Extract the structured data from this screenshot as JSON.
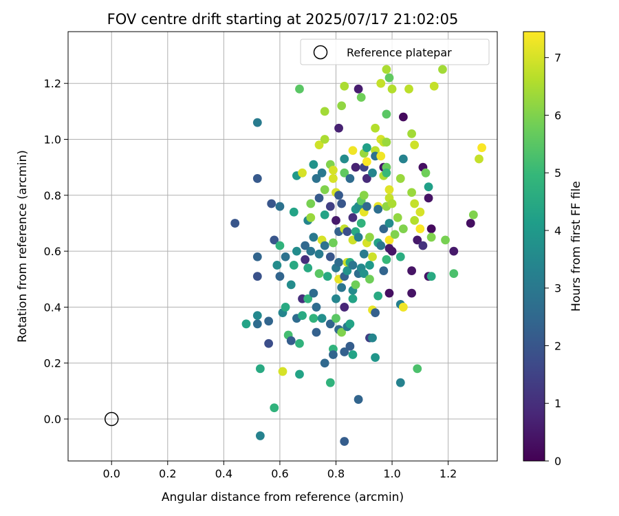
{
  "chart_data": {
    "type": "scatter",
    "title": "FOV centre drift starting at 2025/07/17 21:02:05",
    "xlabel": "Angular distance from reference (arcmin)",
    "ylabel": "Rotation from reference (arcmin)",
    "xlim": [
      -0.155,
      1.375
    ],
    "ylim": [
      -0.15,
      1.385
    ],
    "xticks": [
      "0.0",
      "0.2",
      "0.4",
      "0.6",
      "0.8",
      "1.0",
      "1.2"
    ],
    "yticks": [
      "0.0",
      "0.2",
      "0.4",
      "0.6",
      "0.8",
      "1.0",
      "1.2"
    ],
    "grid": true,
    "legend": {
      "placement": "top-right",
      "label": "Reference platepar",
      "marker": "open-circle"
    },
    "reference_point": {
      "x": 0.0,
      "y": 0.0
    },
    "colorbar": {
      "label": "Hours from first FF file",
      "colormap": "viridis",
      "range": [
        0,
        7.45
      ],
      "ticks": [
        "0",
        "1",
        "2",
        "3",
        "4",
        "5",
        "6",
        "7"
      ]
    },
    "points": [
      {
        "x": 0.44,
        "y": 0.7,
        "h": 2.0
      },
      {
        "x": 0.52,
        "y": 1.06,
        "h": 3.1
      },
      {
        "x": 0.52,
        "y": 0.86,
        "h": 2.1
      },
      {
        "x": 0.52,
        "y": 0.58,
        "h": 2.4
      },
      {
        "x": 0.52,
        "y": 0.51,
        "h": 1.9
      },
      {
        "x": 0.52,
        "y": 0.34,
        "h": 2.6
      },
      {
        "x": 0.52,
        "y": 0.37,
        "h": 3.5
      },
      {
        "x": 0.48,
        "y": 0.34,
        "h": 4.3
      },
      {
        "x": 0.53,
        "y": 0.18,
        "h": 4.5
      },
      {
        "x": 0.53,
        "y": -0.06,
        "h": 3.3
      },
      {
        "x": 0.56,
        "y": 0.35,
        "h": 2.4
      },
      {
        "x": 0.56,
        "y": 0.27,
        "h": 1.8
      },
      {
        "x": 0.57,
        "y": 0.77,
        "h": 2.0
      },
      {
        "x": 0.58,
        "y": 0.64,
        "h": 2.0
      },
      {
        "x": 0.58,
        "y": 0.04,
        "h": 4.8
      },
      {
        "x": 0.59,
        "y": 0.55,
        "h": 3.6
      },
      {
        "x": 0.6,
        "y": 0.76,
        "h": 2.8
      },
      {
        "x": 0.6,
        "y": 0.51,
        "h": 2.4
      },
      {
        "x": 0.6,
        "y": 0.62,
        "h": 4.8
      },
      {
        "x": 0.61,
        "y": 0.38,
        "h": 3.4
      },
      {
        "x": 0.61,
        "y": 0.17,
        "h": 7.0
      },
      {
        "x": 0.62,
        "y": 0.58,
        "h": 2.8
      },
      {
        "x": 0.62,
        "y": 0.4,
        "h": 4.5
      },
      {
        "x": 0.63,
        "y": 0.3,
        "h": 5.2
      },
      {
        "x": 0.64,
        "y": 0.28,
        "h": 2.2
      },
      {
        "x": 0.64,
        "y": 0.48,
        "h": 3.6
      },
      {
        "x": 0.65,
        "y": 0.74,
        "h": 4.3
      },
      {
        "x": 0.65,
        "y": 0.55,
        "h": 4.5
      },
      {
        "x": 0.66,
        "y": 0.87,
        "h": 4.0
      },
      {
        "x": 0.66,
        "y": 0.6,
        "h": 3.6
      },
      {
        "x": 0.66,
        "y": 0.36,
        "h": 2.6
      },
      {
        "x": 0.67,
        "y": 1.18,
        "h": 5.5
      },
      {
        "x": 0.67,
        "y": 0.27,
        "h": 4.8
      },
      {
        "x": 0.67,
        "y": 0.16,
        "h": 4.3
      },
      {
        "x": 0.68,
        "y": 0.88,
        "h": 7.0
      },
      {
        "x": 0.68,
        "y": 0.43,
        "h": 1.0
      },
      {
        "x": 0.68,
        "y": 0.37,
        "h": 4.5
      },
      {
        "x": 0.69,
        "y": 0.62,
        "h": 2.5
      },
      {
        "x": 0.69,
        "y": 0.57,
        "h": 1.0
      },
      {
        "x": 0.7,
        "y": 0.71,
        "h": 3.4
      },
      {
        "x": 0.7,
        "y": 0.54,
        "h": 4.5
      },
      {
        "x": 0.7,
        "y": 0.43,
        "h": 4.8
      },
      {
        "x": 0.71,
        "y": 0.77,
        "h": 5.9
      },
      {
        "x": 0.71,
        "y": 0.72,
        "h": 6.3
      },
      {
        "x": 0.71,
        "y": 0.6,
        "h": 2.9
      },
      {
        "x": 0.72,
        "y": 0.91,
        "h": 3.8
      },
      {
        "x": 0.72,
        "y": 0.65,
        "h": 3.0
      },
      {
        "x": 0.72,
        "y": 0.45,
        "h": 2.6
      },
      {
        "x": 0.72,
        "y": 0.36,
        "h": 4.8
      },
      {
        "x": 0.73,
        "y": 0.4,
        "h": 2.6
      },
      {
        "x": 0.73,
        "y": 0.31,
        "h": 2.3
      },
      {
        "x": 0.73,
        "y": 0.86,
        "h": 2.8
      },
      {
        "x": 0.74,
        "y": 0.98,
        "h": 6.9
      },
      {
        "x": 0.74,
        "y": 0.79,
        "h": 2.1
      },
      {
        "x": 0.74,
        "y": 0.59,
        "h": 3.1
      },
      {
        "x": 0.74,
        "y": 0.52,
        "h": 5.5
      },
      {
        "x": 0.75,
        "y": 0.88,
        "h": 3.0
      },
      {
        "x": 0.75,
        "y": 0.64,
        "h": 7.0
      },
      {
        "x": 0.75,
        "y": 0.36,
        "h": 3.7
      },
      {
        "x": 0.76,
        "y": 1.1,
        "h": 6.4
      },
      {
        "x": 0.76,
        "y": 1.0,
        "h": 6.5
      },
      {
        "x": 0.76,
        "y": 0.82,
        "h": 6.0
      },
      {
        "x": 0.76,
        "y": 0.73,
        "h": 4.3
      },
      {
        "x": 0.76,
        "y": 0.62,
        "h": 2.8
      },
      {
        "x": 0.76,
        "y": 0.2,
        "h": 2.5
      },
      {
        "x": 0.77,
        "y": 0.51,
        "h": 4.5
      },
      {
        "x": 0.78,
        "y": 0.91,
        "h": 6.0
      },
      {
        "x": 0.78,
        "y": 0.76,
        "h": 1.4
      },
      {
        "x": 0.78,
        "y": 0.58,
        "h": 2.0
      },
      {
        "x": 0.78,
        "y": 0.34,
        "h": 2.4
      },
      {
        "x": 0.78,
        "y": 0.13,
        "h": 4.8
      },
      {
        "x": 0.79,
        "y": 0.89,
        "h": 7.0
      },
      {
        "x": 0.79,
        "y": 0.86,
        "h": 7.0
      },
      {
        "x": 0.79,
        "y": 0.63,
        "h": 5.8
      },
      {
        "x": 0.79,
        "y": 0.25,
        "h": 4.8
      },
      {
        "x": 0.79,
        "y": 0.23,
        "h": 2.4
      },
      {
        "x": 0.8,
        "y": 0.71,
        "h": 0.5
      },
      {
        "x": 0.8,
        "y": 0.54,
        "h": 3.0
      },
      {
        "x": 0.8,
        "y": 0.43,
        "h": 3.4
      },
      {
        "x": 0.8,
        "y": 0.36,
        "h": 5.5
      },
      {
        "x": 0.8,
        "y": 0.81,
        "h": 7.0
      },
      {
        "x": 0.81,
        "y": 1.04,
        "h": 0.7
      },
      {
        "x": 0.81,
        "y": 0.8,
        "h": 2.1
      },
      {
        "x": 0.81,
        "y": 0.67,
        "h": 2.3
      },
      {
        "x": 0.81,
        "y": 0.56,
        "h": 2.6
      },
      {
        "x": 0.81,
        "y": 0.5,
        "h": 7.2
      },
      {
        "x": 0.81,
        "y": 0.32,
        "h": 2.5
      },
      {
        "x": 0.82,
        "y": 1.12,
        "h": 6.2
      },
      {
        "x": 0.82,
        "y": 0.77,
        "h": 2.0
      },
      {
        "x": 0.82,
        "y": 0.47,
        "h": 2.9
      },
      {
        "x": 0.82,
        "y": 0.31,
        "h": 6.0
      },
      {
        "x": 0.83,
        "y": 1.19,
        "h": 6.5
      },
      {
        "x": 0.83,
        "y": 0.93,
        "h": 3.6
      },
      {
        "x": 0.83,
        "y": 0.88,
        "h": 5.6
      },
      {
        "x": 0.83,
        "y": 0.68,
        "h": 6.8
      },
      {
        "x": 0.83,
        "y": 0.51,
        "h": 2.3
      },
      {
        "x": 0.83,
        "y": 0.4,
        "h": 0.8
      },
      {
        "x": 0.83,
        "y": 0.24,
        "h": 2.3
      },
      {
        "x": 0.83,
        "y": -0.08,
        "h": 2.2
      },
      {
        "x": 0.84,
        "y": 0.56,
        "h": 6.9
      },
      {
        "x": 0.84,
        "y": 0.53,
        "h": 3.8
      },
      {
        "x": 0.84,
        "y": 0.33,
        "h": 3.0
      },
      {
        "x": 0.84,
        "y": 0.67,
        "h": 1.8
      },
      {
        "x": 0.85,
        "y": 0.86,
        "h": 2.6
      },
      {
        "x": 0.85,
        "y": 0.56,
        "h": 4.5
      },
      {
        "x": 0.85,
        "y": 0.34,
        "h": 4.3
      },
      {
        "x": 0.85,
        "y": 0.26,
        "h": 2.2
      },
      {
        "x": 0.86,
        "y": 0.96,
        "h": 7.3
      },
      {
        "x": 0.86,
        "y": 0.72,
        "h": 1.0
      },
      {
        "x": 0.86,
        "y": 0.64,
        "h": 6.9
      },
      {
        "x": 0.86,
        "y": 0.55,
        "h": 2.9
      },
      {
        "x": 0.86,
        "y": 0.46,
        "h": 3.6
      },
      {
        "x": 0.86,
        "y": 0.43,
        "h": 4.3
      },
      {
        "x": 0.86,
        "y": 0.23,
        "h": 4.3
      },
      {
        "x": 0.87,
        "y": 0.9,
        "h": 0.7
      },
      {
        "x": 0.87,
        "y": 0.75,
        "h": 3.9
      },
      {
        "x": 0.87,
        "y": 0.67,
        "h": 4.5
      },
      {
        "x": 0.87,
        "y": 0.48,
        "h": 5.8
      },
      {
        "x": 0.88,
        "y": 1.18,
        "h": 0.6
      },
      {
        "x": 0.88,
        "y": 0.76,
        "h": 3.6
      },
      {
        "x": 0.88,
        "y": 0.65,
        "h": 3.2
      },
      {
        "x": 0.88,
        "y": 0.52,
        "h": 2.7
      },
      {
        "x": 0.88,
        "y": 0.07,
        "h": 2.4
      },
      {
        "x": 0.89,
        "y": 1.15,
        "h": 5.8
      },
      {
        "x": 0.89,
        "y": 0.78,
        "h": 5.6
      },
      {
        "x": 0.89,
        "y": 0.7,
        "h": 4.8
      },
      {
        "x": 0.89,
        "y": 0.54,
        "h": 3.5
      },
      {
        "x": 0.9,
        "y": 0.95,
        "h": 6.3
      },
      {
        "x": 0.9,
        "y": 0.9,
        "h": 1.5
      },
      {
        "x": 0.9,
        "y": 0.8,
        "h": 6.1
      },
      {
        "x": 0.9,
        "y": 0.74,
        "h": 7.2
      },
      {
        "x": 0.9,
        "y": 0.59,
        "h": 3.1
      },
      {
        "x": 0.9,
        "y": 0.52,
        "h": 3.8
      },
      {
        "x": 0.91,
        "y": 0.97,
        "h": 4.2
      },
      {
        "x": 0.91,
        "y": 0.92,
        "h": 7.4
      },
      {
        "x": 0.91,
        "y": 0.86,
        "h": 0.9
      },
      {
        "x": 0.91,
        "y": 0.76,
        "h": 2.5
      },
      {
        "x": 0.91,
        "y": 0.63,
        "h": 7.0
      },
      {
        "x": 0.92,
        "y": 0.65,
        "h": 6.2
      },
      {
        "x": 0.92,
        "y": 0.55,
        "h": 4.0
      },
      {
        "x": 0.92,
        "y": 0.29,
        "h": 1.4
      },
      {
        "x": 0.92,
        "y": 0.5,
        "h": 5.8
      },
      {
        "x": 0.93,
        "y": 0.88,
        "h": 3.4
      },
      {
        "x": 0.93,
        "y": 0.58,
        "h": 6.9
      },
      {
        "x": 0.93,
        "y": 0.29,
        "h": 3.4
      },
      {
        "x": 0.93,
        "y": 0.39,
        "h": 7.2
      },
      {
        "x": 0.94,
        "y": 1.04,
        "h": 6.6
      },
      {
        "x": 0.94,
        "y": 0.96,
        "h": 6.7
      },
      {
        "x": 0.94,
        "y": 0.94,
        "h": 2.8
      },
      {
        "x": 0.94,
        "y": 0.38,
        "h": 2.3
      },
      {
        "x": 0.94,
        "y": 0.22,
        "h": 3.9
      },
      {
        "x": 0.95,
        "y": 0.76,
        "h": 7.2
      },
      {
        "x": 0.95,
        "y": 0.75,
        "h": 2.7
      },
      {
        "x": 0.95,
        "y": 0.63,
        "h": 4.3
      },
      {
        "x": 0.95,
        "y": 0.44,
        "h": 4.5
      },
      {
        "x": 0.96,
        "y": 1.2,
        "h": 6.8
      },
      {
        "x": 0.96,
        "y": 1.0,
        "h": 7.0
      },
      {
        "x": 0.96,
        "y": 0.94,
        "h": 7.3
      },
      {
        "x": 0.96,
        "y": 0.62,
        "h": 3.0
      },
      {
        "x": 0.97,
        "y": 0.99,
        "h": 6.8
      },
      {
        "x": 0.97,
        "y": 0.9,
        "h": 0.5
      },
      {
        "x": 0.97,
        "y": 0.87,
        "h": 6.5
      },
      {
        "x": 0.97,
        "y": 0.68,
        "h": 2.4
      },
      {
        "x": 0.97,
        "y": 0.53,
        "h": 2.4
      },
      {
        "x": 0.98,
        "y": 1.25,
        "h": 6.5
      },
      {
        "x": 0.98,
        "y": 1.09,
        "h": 5.5
      },
      {
        "x": 0.98,
        "y": 0.99,
        "h": 6.3
      },
      {
        "x": 0.98,
        "y": 0.9,
        "h": 5.7
      },
      {
        "x": 0.98,
        "y": 0.88,
        "h": 5.0
      },
      {
        "x": 0.98,
        "y": 0.76,
        "h": 6.2
      },
      {
        "x": 0.98,
        "y": 0.57,
        "h": 5.0
      },
      {
        "x": 0.99,
        "y": 1.22,
        "h": 5.6
      },
      {
        "x": 0.99,
        "y": 0.82,
        "h": 7.1
      },
      {
        "x": 0.99,
        "y": 0.79,
        "h": 6.8
      },
      {
        "x": 0.99,
        "y": 0.7,
        "h": 3.6
      },
      {
        "x": 0.99,
        "y": 0.64,
        "h": 7.4
      },
      {
        "x": 0.99,
        "y": 0.61,
        "h": 0.5
      },
      {
        "x": 0.99,
        "y": 0.45,
        "h": 0.3
      },
      {
        "x": 1.0,
        "y": 1.18,
        "h": 6.6
      },
      {
        "x": 1.0,
        "y": 0.77,
        "h": 6.5
      },
      {
        "x": 1.0,
        "y": 0.6,
        "h": 0.4
      },
      {
        "x": 1.01,
        "y": 0.66,
        "h": 6.0
      },
      {
        "x": 1.02,
        "y": 0.72,
        "h": 6.2
      },
      {
        "x": 1.03,
        "y": 0.86,
        "h": 6.3
      },
      {
        "x": 1.03,
        "y": 0.58,
        "h": 4.6
      },
      {
        "x": 1.03,
        "y": 0.41,
        "h": 3.2
      },
      {
        "x": 1.03,
        "y": 0.13,
        "h": 3.3
      },
      {
        "x": 1.04,
        "y": 1.08,
        "h": 0.2
      },
      {
        "x": 1.04,
        "y": 0.93,
        "h": 3.3
      },
      {
        "x": 1.04,
        "y": 0.68,
        "h": 6.0
      },
      {
        "x": 1.04,
        "y": 0.4,
        "h": 7.3
      },
      {
        "x": 1.06,
        "y": 1.18,
        "h": 6.7
      },
      {
        "x": 1.07,
        "y": 1.02,
        "h": 6.4
      },
      {
        "x": 1.07,
        "y": 0.81,
        "h": 6.3
      },
      {
        "x": 1.07,
        "y": 0.53,
        "h": 0.4
      },
      {
        "x": 1.07,
        "y": 0.45,
        "h": 0.4
      },
      {
        "x": 1.08,
        "y": 0.98,
        "h": 6.9
      },
      {
        "x": 1.08,
        "y": 0.77,
        "h": 6.8
      },
      {
        "x": 1.08,
        "y": 0.71,
        "h": 6.6
      },
      {
        "x": 1.09,
        "y": 0.64,
        "h": 0.5
      },
      {
        "x": 1.09,
        "y": 0.18,
        "h": 5.3
      },
      {
        "x": 1.1,
        "y": 0.74,
        "h": 7.0
      },
      {
        "x": 1.1,
        "y": 0.68,
        "h": 7.4
      },
      {
        "x": 1.11,
        "y": 0.9,
        "h": 0.3
      },
      {
        "x": 1.11,
        "y": 0.62,
        "h": 1.1
      },
      {
        "x": 1.12,
        "y": 0.88,
        "h": 5.8
      },
      {
        "x": 1.13,
        "y": 0.79,
        "h": 0.4
      },
      {
        "x": 1.13,
        "y": 0.51,
        "h": 0.4
      },
      {
        "x": 1.13,
        "y": 0.83,
        "h": 4.2
      },
      {
        "x": 1.14,
        "y": 0.68,
        "h": 0.2
      },
      {
        "x": 1.14,
        "y": 0.65,
        "h": 6.0
      },
      {
        "x": 1.14,
        "y": 0.51,
        "h": 4.5
      },
      {
        "x": 1.15,
        "y": 1.19,
        "h": 6.8
      },
      {
        "x": 1.18,
        "y": 1.25,
        "h": 6.4
      },
      {
        "x": 1.19,
        "y": 0.64,
        "h": 5.9
      },
      {
        "x": 1.22,
        "y": 0.6,
        "h": 0.5
      },
      {
        "x": 1.22,
        "y": 0.52,
        "h": 5.3
      },
      {
        "x": 1.28,
        "y": 0.7,
        "h": 0.3
      },
      {
        "x": 1.29,
        "y": 0.73,
        "h": 6.0
      },
      {
        "x": 1.31,
        "y": 0.93,
        "h": 6.8
      },
      {
        "x": 1.32,
        "y": 0.97,
        "h": 7.4
      }
    ]
  }
}
